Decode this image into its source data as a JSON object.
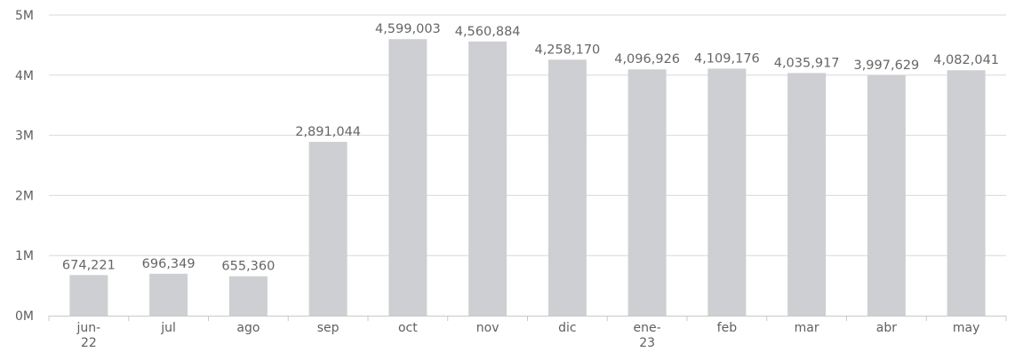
{
  "chart_data": {
    "type": "bar",
    "title": "",
    "xlabel": "",
    "ylabel": "",
    "categories": [
      [
        "jun-",
        "22"
      ],
      [
        "jul"
      ],
      [
        "ago"
      ],
      [
        "sep"
      ],
      [
        "oct"
      ],
      [
        "nov"
      ],
      [
        "dic"
      ],
      [
        "ene-",
        "23"
      ],
      [
        "feb"
      ],
      [
        "mar"
      ],
      [
        "abr"
      ],
      [
        "may"
      ]
    ],
    "values": [
      674221,
      696349,
      655360,
      2891044,
      4599003,
      4560884,
      4258170,
      4096926,
      4109176,
      4035917,
      3997629,
      4082041
    ],
    "value_labels": [
      "674,221",
      "696,349",
      "655,360",
      "2,891,044",
      "4,599,003",
      "4,560,884",
      "4,258,170",
      "4,096,926",
      "4,109,176",
      "4,035,917",
      "3,997,629",
      "4,082,041"
    ],
    "y_ticks": [
      0,
      1000000,
      2000000,
      3000000,
      4000000,
      5000000
    ],
    "y_tick_labels": [
      "0M",
      "1M",
      "2M",
      "3M",
      "4M",
      "5M"
    ],
    "ylim": [
      0,
      5000000
    ],
    "grid": true,
    "colors": {
      "bar": "#cdcfd3",
      "grid": "#d9d9d9",
      "axis": "#c8c8c8",
      "text": "#5f5f5f"
    }
  }
}
